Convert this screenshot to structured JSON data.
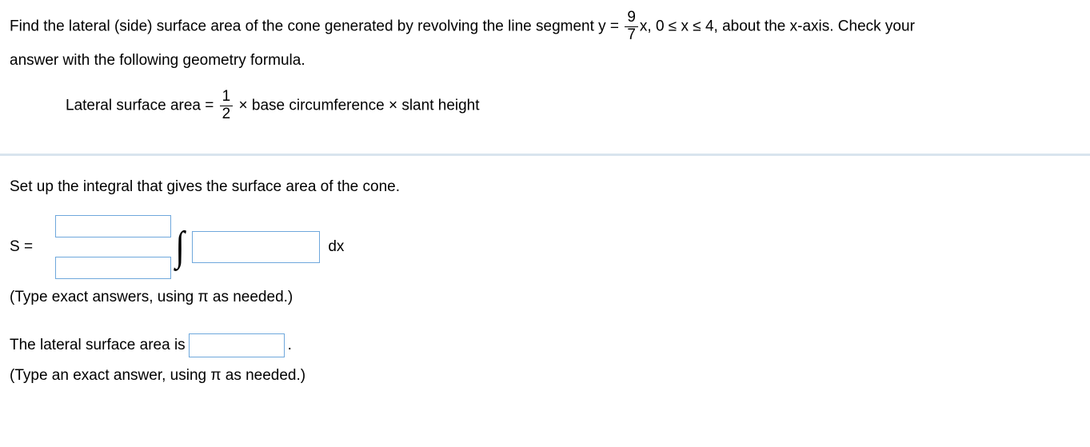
{
  "problem": {
    "line1_a": "Find the lateral (side) surface area of the cone generated by revolving the line segment y =",
    "frac1_num": "9",
    "frac1_den": "7",
    "line1_b": "x, 0 ≤ x ≤ 4, about the x-axis. Check your",
    "line2": "answer with the following geometry formula.",
    "formula_a": "Lateral surface area =",
    "frac2_num": "1",
    "frac2_den": "2",
    "formula_b": "× base circumference × slant height"
  },
  "part1": {
    "prompt": "Set up the integral that gives the surface area of the cone.",
    "s_eq": "S =",
    "dx": "dx",
    "hint": "(Type exact answers, using π as needed.)"
  },
  "part2": {
    "prompt": "The lateral surface area is",
    "period": ".",
    "hint": "(Type an exact answer, using π as needed.)"
  }
}
